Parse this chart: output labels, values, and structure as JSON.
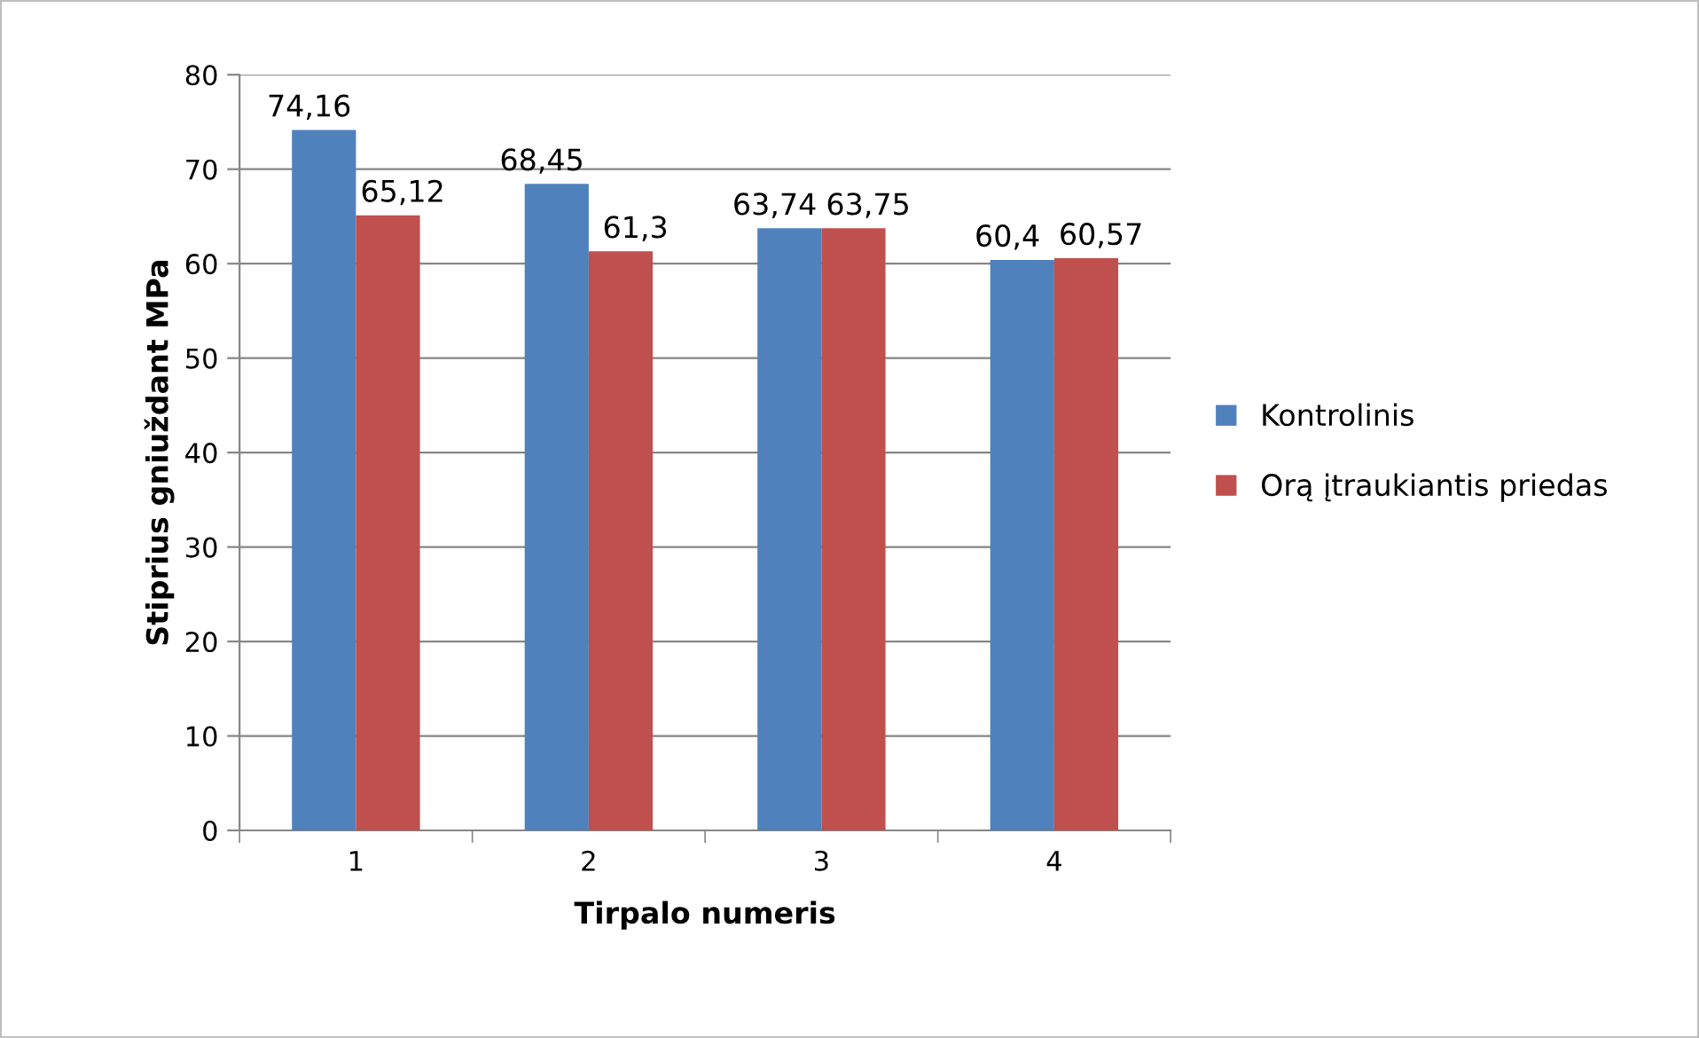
{
  "chart_data": {
    "type": "bar",
    "xlabel": "Tirpalo numeris",
    "ylabel": "Stiprius gniuždant MPa",
    "categories": [
      "1",
      "2",
      "3",
      "4"
    ],
    "series": [
      {
        "name": "Kontrolinis",
        "color": "#4f81bd",
        "values": [
          74.16,
          68.45,
          63.74,
          60.4
        ],
        "value_labels": [
          "74,16",
          "68,45",
          "63,74",
          "60,4"
        ]
      },
      {
        "name": "Orą įtraukiantis priedas",
        "color": "#c0504d",
        "values": [
          65.12,
          61.3,
          63.75,
          60.57
        ],
        "value_labels": [
          "65,12",
          "61,3",
          "63,75",
          "60,57"
        ]
      }
    ],
    "ylim": [
      0,
      80
    ],
    "yticks": [
      0,
      10,
      20,
      30,
      40,
      50,
      60,
      70,
      80
    ],
    "grid": "y",
    "legend": "right"
  }
}
